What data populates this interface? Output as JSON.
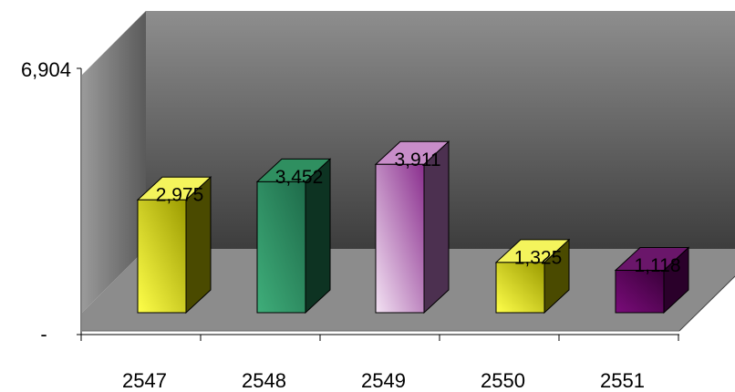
{
  "chart_data": {
    "type": "bar",
    "style": "3d-column",
    "categories": [
      "2547",
      "2548",
      "2549",
      "2550",
      "2551"
    ],
    "values": [
      2975,
      3452,
      3911,
      1325,
      1118
    ],
    "data_labels": [
      "2,975",
      "3,452",
      "3,911",
      "1,325",
      "1,118"
    ],
    "ylim": [
      0,
      6904
    ],
    "y_tick_labels": [
      "-",
      "6,904"
    ],
    "title": "",
    "xlabel": "",
    "ylabel": "",
    "grid": false,
    "legend": "none",
    "bar_colors": [
      {
        "front_light": "#ffff4a",
        "front_dark": "#9b9b00",
        "top": "#f4f45c",
        "side": "#4a4a00"
      },
      {
        "front_light": "#3fae7a",
        "front_dark": "#1e6b4a",
        "top": "#2f8f60",
        "side": "#0d3322"
      },
      {
        "front_light": "#f3e2f3",
        "front_dark": "#8a2f8e",
        "top": "#c88dc9",
        "side": "#4c3050"
      },
      {
        "front_light": "#ffff4a",
        "front_dark": "#9b9b00",
        "top": "#f4f45c",
        "side": "#4a4a00"
      },
      {
        "front_light": "#7a0c7a",
        "front_dark": "#3a003a",
        "top": "#6a166a",
        "side": "#2a002a"
      }
    ],
    "wall_colors": {
      "back_light": "#8e8e8e",
      "back_dark": "#3d3d3d",
      "floor": "#8c8c8c",
      "floor_edge": "#6f6f6f"
    }
  }
}
